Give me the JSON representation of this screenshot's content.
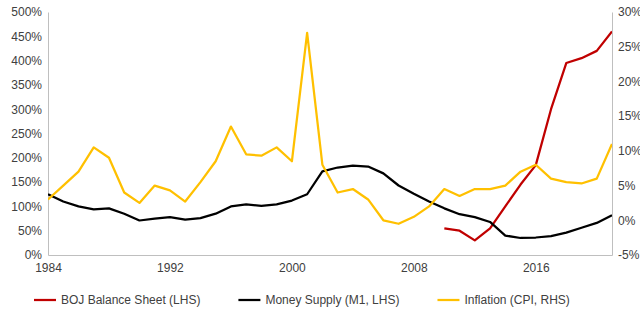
{
  "chart_data": {
    "type": "line",
    "x": [
      1984,
      1985,
      1986,
      1987,
      1988,
      1989,
      1990,
      1991,
      1992,
      1993,
      1994,
      1995,
      1996,
      1997,
      1998,
      1999,
      2000,
      2001,
      2002,
      2003,
      2004,
      2005,
      2006,
      2007,
      2008,
      2009,
      2010,
      2011,
      2012,
      2013,
      2014,
      2015,
      2016,
      2017,
      2018,
      2019,
      2020,
      2021
    ],
    "xlim": [
      1984,
      2021
    ],
    "xticks": [
      1984,
      1992,
      2000,
      2008,
      2016
    ],
    "ylim": [
      0,
      500
    ],
    "yticks": [
      {
        "value": 0,
        "label": "0%"
      },
      {
        "value": 50,
        "label": "50%"
      },
      {
        "value": 100,
        "label": "100%"
      },
      {
        "value": 150,
        "label": "150%"
      },
      {
        "value": 200,
        "label": "200%"
      },
      {
        "value": 250,
        "label": "250%"
      },
      {
        "value": 300,
        "label": "300%"
      },
      {
        "value": 350,
        "label": "350%"
      },
      {
        "value": 400,
        "label": "400%"
      },
      {
        "value": 450,
        "label": "450%"
      },
      {
        "value": 500,
        "label": "500%"
      }
    ],
    "y2lim": [
      -5,
      30
    ],
    "y2ticks": [
      {
        "value": -5,
        "label": "-5%"
      },
      {
        "value": 0,
        "label": "0%"
      },
      {
        "value": 5,
        "label": "5%"
      },
      {
        "value": 10,
        "label": "10%"
      },
      {
        "value": 15,
        "label": "15%"
      },
      {
        "value": 20,
        "label": "20%"
      },
      {
        "value": 25,
        "label": "25%"
      },
      {
        "value": 30,
        "label": "30%"
      }
    ],
    "grid": false,
    "legend": "bottom",
    "series": [
      {
        "name": "BOJ Balance Sheet (LHS)",
        "color": "#c00000",
        "values": [
          null,
          null,
          null,
          null,
          null,
          null,
          null,
          null,
          null,
          null,
          null,
          null,
          null,
          null,
          null,
          null,
          null,
          null,
          null,
          null,
          null,
          null,
          null,
          null,
          null,
          null,
          55,
          50,
          30,
          55,
          100,
          145,
          185,
          300,
          395,
          405,
          420,
          460
        ]
      },
      {
        "name": "Money Supply (M1, LHS)",
        "color": "#000000",
        "values": [
          125,
          110,
          100,
          94,
          96,
          85,
          71,
          75,
          78,
          73,
          76,
          85,
          100,
          104,
          101,
          104,
          112,
          125,
          172,
          180,
          184,
          182,
          168,
          143,
          126,
          110,
          96,
          84,
          78,
          68,
          40,
          35,
          36,
          39,
          46,
          56,
          66,
          82
        ]
      },
      {
        "name": "Inflation (CPI, RHS)",
        "color": "#ffc000",
        "axis": "y2",
        "values": [
          3,
          5,
          7,
          10.5,
          9,
          4,
          2.5,
          5,
          4.3,
          2.7,
          5.5,
          8.5,
          13.5,
          9.5,
          9.3,
          10.5,
          8.5,
          27,
          8,
          4,
          4.5,
          3,
          0,
          -0.5,
          0.5,
          2,
          4.5,
          3.5,
          4.5,
          4.5,
          5,
          7,
          8,
          6,
          5.5,
          5.3,
          6,
          11
        ]
      }
    ]
  }
}
